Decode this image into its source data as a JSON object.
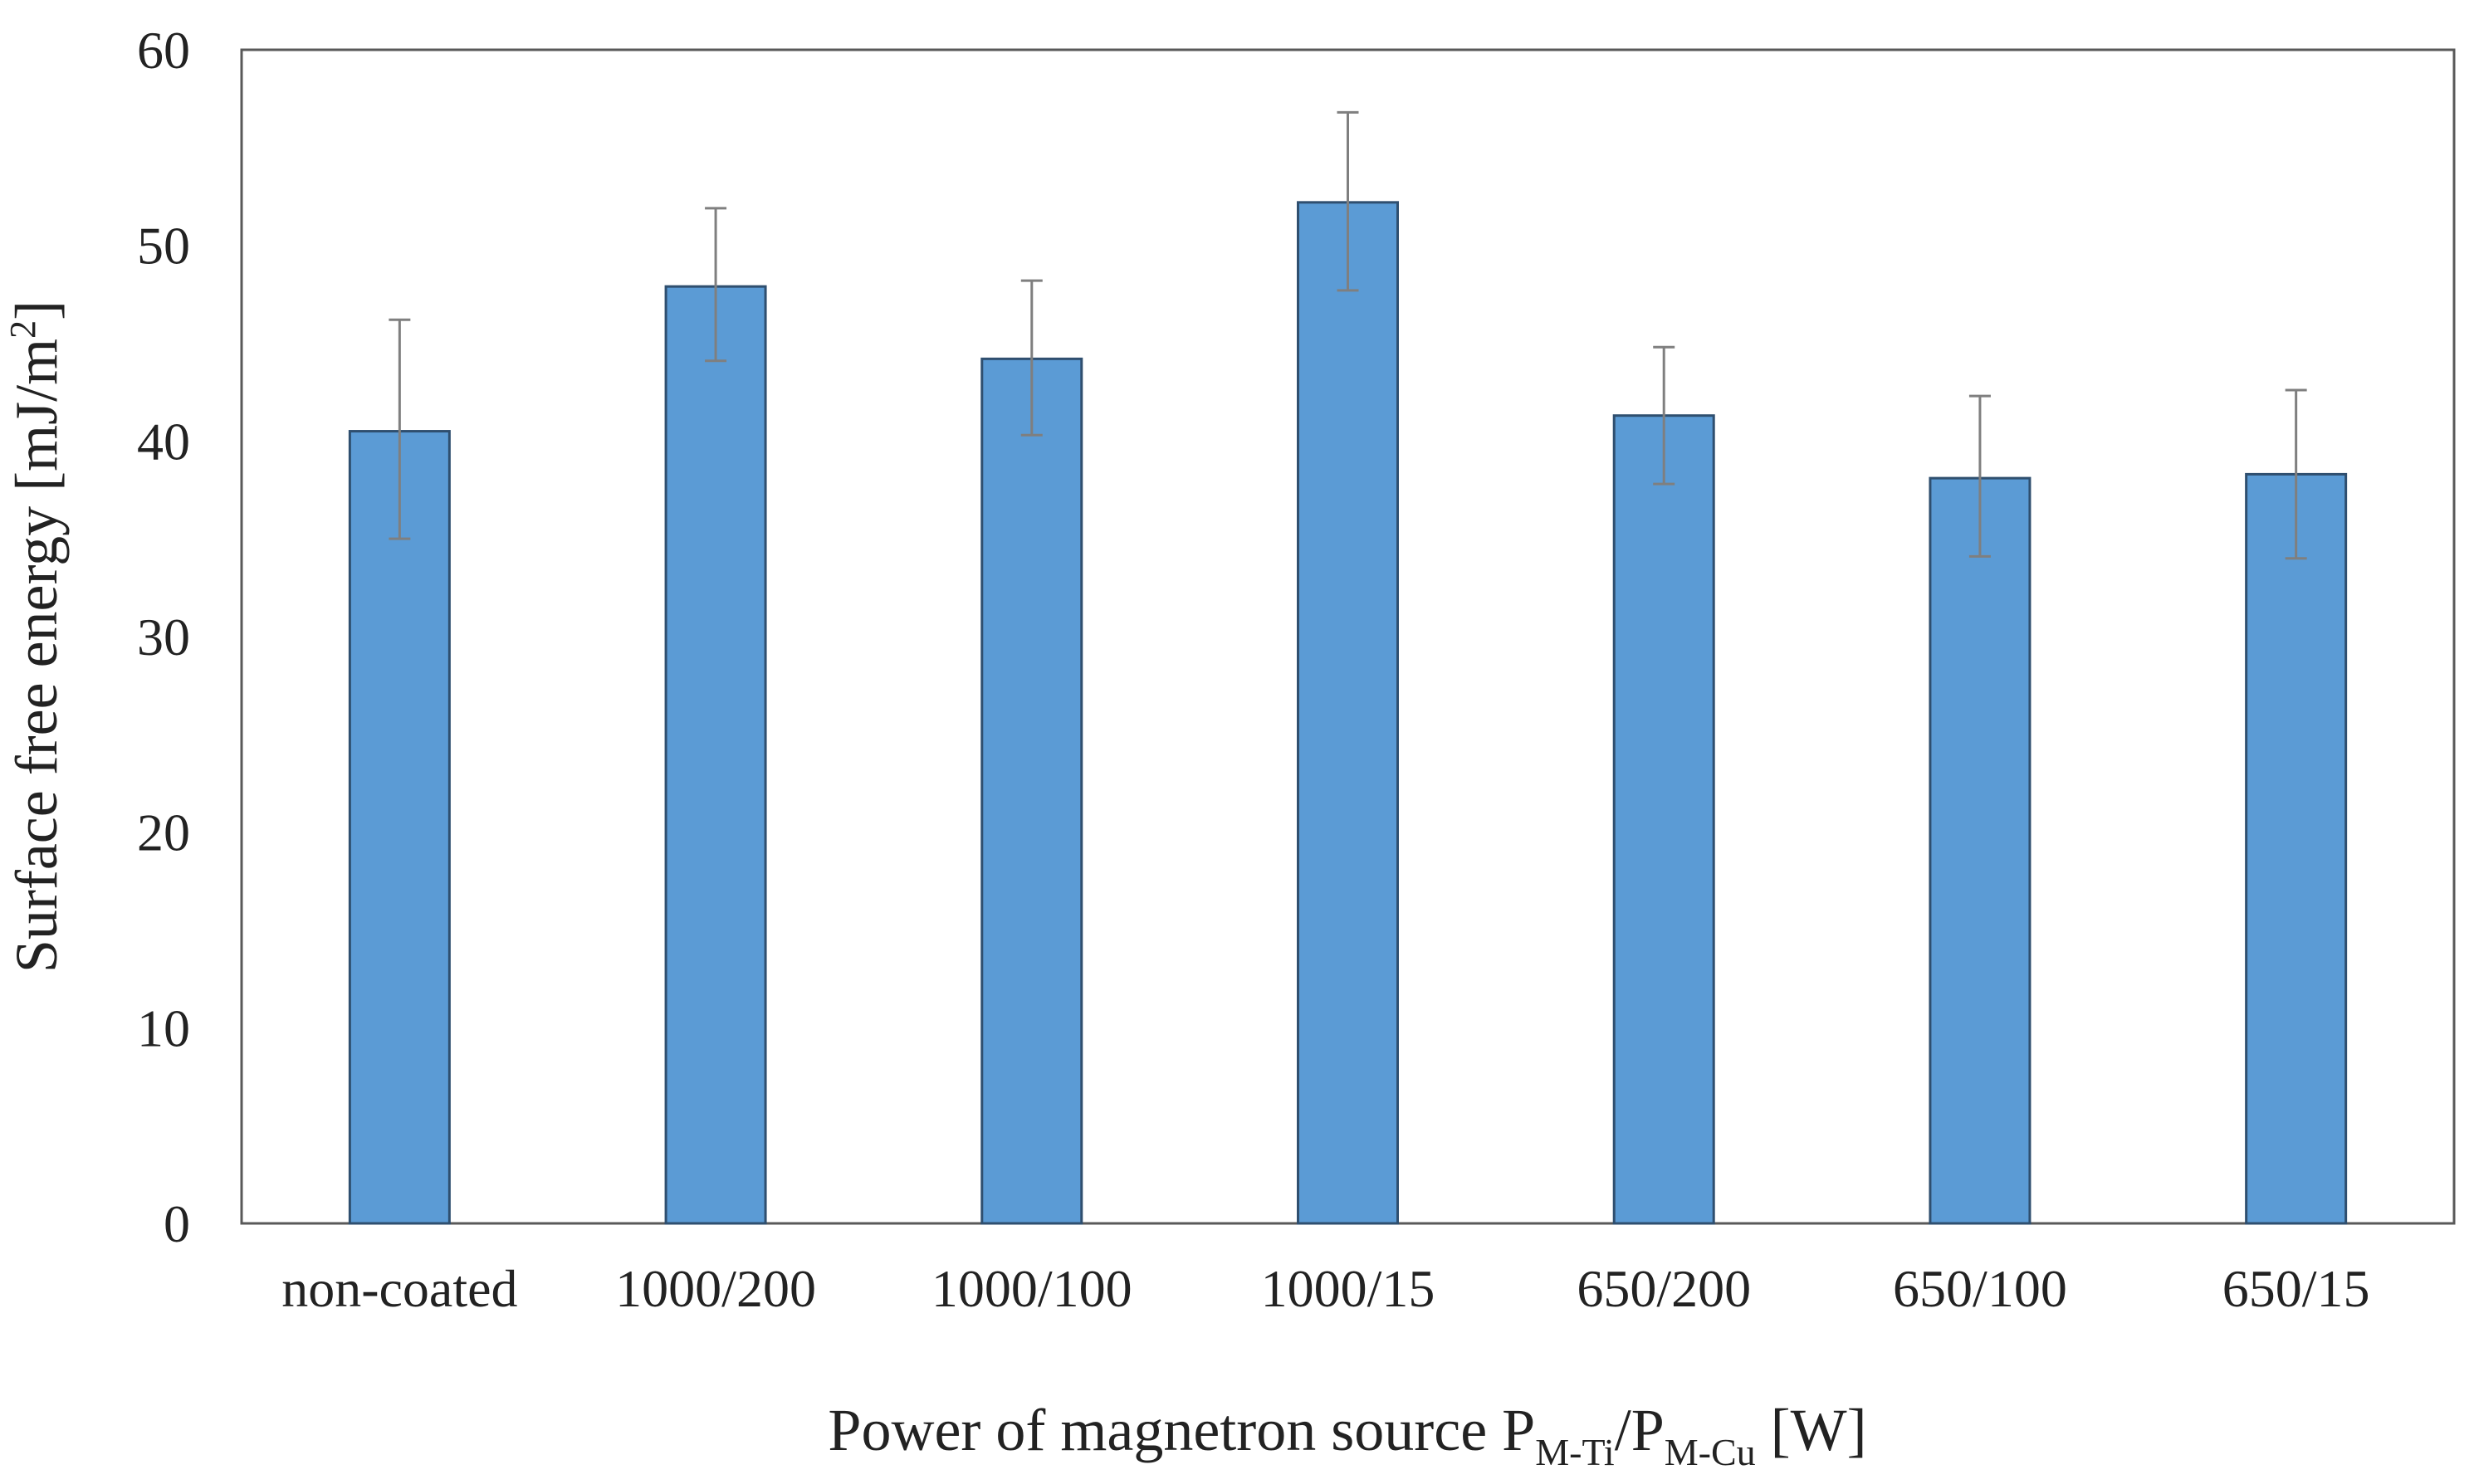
{
  "chart_data": {
    "type": "bar",
    "title": "",
    "xlabel": {
      "prefix": "Power of magnetron source P",
      "sub1": "M-Ti",
      "mid": "/P",
      "sub2": "M-Cu",
      "suffix": " [W]"
    },
    "ylabel": {
      "main": "Surface free energy [mJ/m",
      "sup": "2",
      "end": "]"
    },
    "categories": [
      "non-coated",
      "1000/200",
      "1000/100",
      "1000/15",
      "650/200",
      "650/100",
      "650/15"
    ],
    "values": [
      40.5,
      47.9,
      44.2,
      52.2,
      41.3,
      38.1,
      38.3
    ],
    "error_low": [
      35.0,
      44.1,
      40.3,
      47.7,
      37.8,
      34.1,
      34.0
    ],
    "error_high": [
      46.2,
      51.9,
      48.2,
      56.8,
      44.8,
      42.3,
      42.6
    ],
    "ylim": [
      0,
      60
    ],
    "yticks": [
      0,
      10,
      20,
      30,
      40,
      50,
      60
    ],
    "grid": false,
    "legend": "none",
    "colors": {
      "bar_fill": "#5b9bd5",
      "bar_stroke": "#2f4f6f",
      "error_bar": "#7f7f7f",
      "axis": "#595959"
    }
  }
}
